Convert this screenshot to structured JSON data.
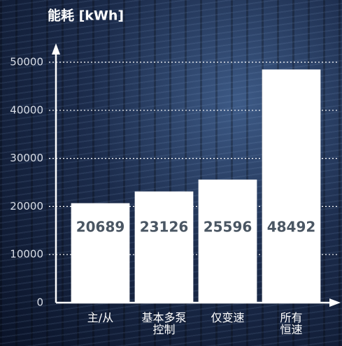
{
  "chart_data": {
    "type": "bar",
    "title": "能耗 [kWh]",
    "categories": [
      "主/从",
      "基本多泵\n控制",
      "仅变速",
      "所有\n恒速"
    ],
    "values": [
      20689,
      23126,
      25596,
      48492
    ],
    "color": "#ffffff",
    "ylim": [
      0,
      50000
    ],
    "yticks": [
      0,
      10000,
      20000,
      30000,
      40000,
      50000
    ],
    "grid": true
  }
}
